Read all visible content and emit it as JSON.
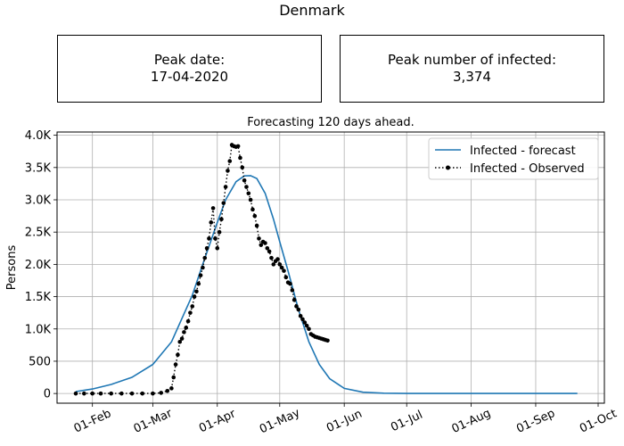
{
  "header": {
    "title": "Denmark"
  },
  "peak_date_box": {
    "label": "Peak date:",
    "value": "17-04-2020"
  },
  "peak_infected_box": {
    "label": "Peak number of infected:",
    "value": "3,374"
  },
  "colors": {
    "forecast": "#1f77b4",
    "observed": "#000000",
    "grid": "#b0b0b0"
  },
  "chart_data": {
    "type": "line",
    "title": "Forecasting 120 days ahead.",
    "ylabel": "Persons",
    "xlabel": "",
    "grid": true,
    "legend_position": "top-right",
    "x_axis": {
      "type": "date",
      "range": [
        "2020-01-15",
        "2020-10-04"
      ],
      "ticks": [
        {
          "date": "2020-02-01",
          "label": "01-Feb"
        },
        {
          "date": "2020-03-01",
          "label": "01-Mar"
        },
        {
          "date": "2020-04-01",
          "label": "01-Apr"
        },
        {
          "date": "2020-05-01",
          "label": "01-May"
        },
        {
          "date": "2020-06-01",
          "label": "01-Jun"
        },
        {
          "date": "2020-07-01",
          "label": "01-Jul"
        },
        {
          "date": "2020-08-01",
          "label": "01-Aug"
        },
        {
          "date": "2020-09-01",
          "label": "01-Sep"
        },
        {
          "date": "2020-10-01",
          "label": "01-Oct"
        }
      ]
    },
    "y_axis": {
      "range": [
        -150,
        4050
      ],
      "ticks": [
        {
          "value": 0,
          "label": "0"
        },
        {
          "value": 500,
          "label": "500"
        },
        {
          "value": 1000,
          "label": "1.0K"
        },
        {
          "value": 1500,
          "label": "1.5K"
        },
        {
          "value": 2000,
          "label": "2.0K"
        },
        {
          "value": 2500,
          "label": "2.5K"
        },
        {
          "value": 3000,
          "label": "3.0K"
        },
        {
          "value": 3500,
          "label": "3.5K"
        },
        {
          "value": 4000,
          "label": "4.0K"
        }
      ]
    },
    "series": [
      {
        "name": "Infected - forecast",
        "style": "line",
        "x": [
          "2020-01-24",
          "2020-02-01",
          "2020-02-10",
          "2020-02-20",
          "2020-03-01",
          "2020-03-10",
          "2020-03-20",
          "2020-03-25",
          "2020-04-01",
          "2020-04-05",
          "2020-04-10",
          "2020-04-14",
          "2020-04-17",
          "2020-04-20",
          "2020-04-24",
          "2020-04-28",
          "2020-05-01",
          "2020-05-05",
          "2020-05-10",
          "2020-05-15",
          "2020-05-20",
          "2020-05-25",
          "2020-06-01",
          "2020-06-10",
          "2020-06-20",
          "2020-07-01",
          "2020-08-01",
          "2020-09-01",
          "2020-09-21"
        ],
        "y": [
          30,
          70,
          140,
          250,
          450,
          800,
          1520,
          2000,
          2650,
          3000,
          3280,
          3370,
          3374,
          3330,
          3100,
          2700,
          2350,
          1900,
          1300,
          800,
          450,
          230,
          80,
          20,
          5,
          0,
          0,
          0,
          0
        ]
      },
      {
        "name": "Infected - Observed",
        "style": "dotted-markers",
        "x": [
          "2020-01-24",
          "2020-01-28",
          "2020-02-01",
          "2020-02-05",
          "2020-02-10",
          "2020-02-15",
          "2020-02-20",
          "2020-02-25",
          "2020-03-01",
          "2020-03-05",
          "2020-03-08",
          "2020-03-10",
          "2020-03-11",
          "2020-03-12",
          "2020-03-13",
          "2020-03-14",
          "2020-03-15",
          "2020-03-16",
          "2020-03-17",
          "2020-03-18",
          "2020-03-19",
          "2020-03-20",
          "2020-03-21",
          "2020-03-22",
          "2020-03-23",
          "2020-03-24",
          "2020-03-25",
          "2020-03-26",
          "2020-03-27",
          "2020-03-28",
          "2020-03-29",
          "2020-03-30",
          "2020-03-31",
          "2020-04-01",
          "2020-04-02",
          "2020-04-03",
          "2020-04-04",
          "2020-04-05",
          "2020-04-06",
          "2020-04-07",
          "2020-04-08",
          "2020-04-09",
          "2020-04-10",
          "2020-04-11",
          "2020-04-12",
          "2020-04-13",
          "2020-04-14",
          "2020-04-15",
          "2020-04-16",
          "2020-04-17",
          "2020-04-18",
          "2020-04-19",
          "2020-04-20",
          "2020-04-21",
          "2020-04-22",
          "2020-04-23",
          "2020-04-24",
          "2020-04-25",
          "2020-04-26",
          "2020-04-27",
          "2020-04-28",
          "2020-04-29",
          "2020-04-30",
          "2020-05-01",
          "2020-05-02",
          "2020-05-03",
          "2020-05-04",
          "2020-05-05",
          "2020-05-06",
          "2020-05-07",
          "2020-05-08",
          "2020-05-09",
          "2020-05-10",
          "2020-05-11",
          "2020-05-12",
          "2020-05-13",
          "2020-05-14",
          "2020-05-15",
          "2020-05-16",
          "2020-05-17",
          "2020-05-18",
          "2020-05-19",
          "2020-05-20",
          "2020-05-21",
          "2020-05-22",
          "2020-05-23",
          "2020-05-24"
        ],
        "y": [
          0,
          0,
          0,
          0,
          0,
          0,
          0,
          0,
          0,
          10,
          40,
          80,
          250,
          450,
          600,
          800,
          850,
          950,
          1020,
          1120,
          1250,
          1350,
          1500,
          1580,
          1700,
          1830,
          1950,
          2100,
          2250,
          2400,
          2650,
          2870,
          2400,
          2250,
          2500,
          2700,
          2950,
          3200,
          3450,
          3600,
          3850,
          3830,
          3820,
          3830,
          3650,
          3500,
          3300,
          3200,
          3100,
          3000,
          2850,
          2750,
          2600,
          2400,
          2300,
          2350,
          2330,
          2250,
          2200,
          2100,
          2000,
          2050,
          2080,
          2000,
          1950,
          1900,
          1800,
          1720,
          1700,
          1600,
          1450,
          1350,
          1300,
          1200,
          1150,
          1100,
          1050,
          1000,
          920,
          900,
          880,
          870,
          860,
          850,
          840,
          830,
          820
        ]
      }
    ]
  }
}
